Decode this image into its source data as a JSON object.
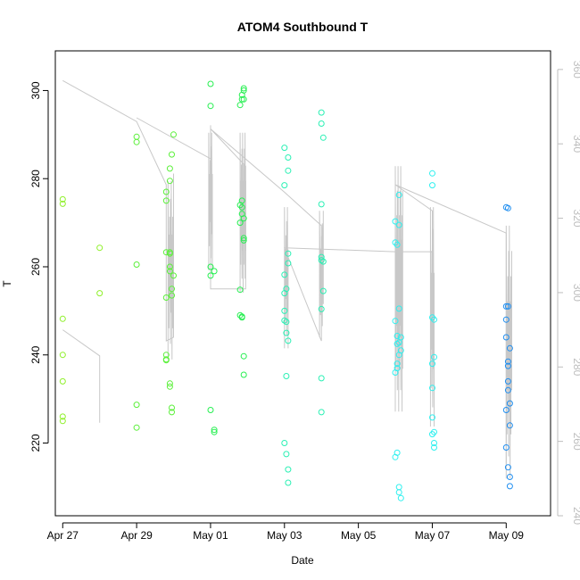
{
  "chart_data": {
    "type": "scatter",
    "title": "ATOM4 Southbound T",
    "xlabel": "Date",
    "ylabel": "T",
    "xlim": [
      -0.2,
      13.2
    ],
    "ylim": [
      203.5,
      309.0
    ],
    "y2lim": [
      240.0,
      365.0
    ],
    "x_ticks": [
      {
        "pos": 0,
        "label": "Apr 27"
      },
      {
        "pos": 2,
        "label": "Apr 29"
      },
      {
        "pos": 4,
        "label": "May 01"
      },
      {
        "pos": 6,
        "label": "May 03"
      },
      {
        "pos": 8,
        "label": "May 05"
      },
      {
        "pos": 10,
        "label": "May 07"
      },
      {
        "pos": 12,
        "label": "May 09"
      }
    ],
    "y_ticks": [
      220,
      240,
      260,
      280,
      300
    ],
    "y2_ticks": [
      240,
      260,
      280,
      300,
      320,
      340,
      360
    ],
    "colors": {
      "line": "#c8c8c8",
      "axis": "#000000",
      "right_axis": "#bdbdbd",
      "point_palette": [
        "#8ff02a",
        "#5bf03a",
        "#25ef50",
        "#2af0b4",
        "#2ef0ef",
        "#1f8ef0"
      ]
    },
    "points": [
      [
        0.0,
        275.3,
        0
      ],
      [
        0.0,
        274.3,
        0
      ],
      [
        0.0,
        248.2,
        0
      ],
      [
        0.0,
        240.0,
        0
      ],
      [
        0.0,
        234.0,
        0
      ],
      [
        0.0,
        226.0,
        0
      ],
      [
        0.0,
        225.0,
        0
      ],
      [
        1.0,
        264.3,
        0
      ],
      [
        1.0,
        254.0,
        0
      ],
      [
        2.0,
        289.5,
        1
      ],
      [
        2.0,
        288.3,
        1
      ],
      [
        2.0,
        260.5,
        1
      ],
      [
        2.0,
        228.7,
        1
      ],
      [
        2.0,
        223.5,
        1
      ],
      [
        2.8,
        277.0,
        1
      ],
      [
        2.8,
        275.0,
        1
      ],
      [
        2.8,
        263.3,
        1
      ],
      [
        2.8,
        253.0,
        1
      ],
      [
        2.8,
        240.0,
        1
      ],
      [
        2.8,
        239.0,
        1
      ],
      [
        2.8,
        238.8,
        1
      ],
      [
        2.9,
        282.3,
        1
      ],
      [
        2.9,
        279.5,
        1
      ],
      [
        2.9,
        263.3,
        1
      ],
      [
        2.9,
        263.0,
        1
      ],
      [
        2.9,
        260.0,
        1
      ],
      [
        2.9,
        259.0,
        1
      ],
      [
        2.9,
        233.5,
        1
      ],
      [
        2.9,
        232.8,
        1
      ],
      [
        2.95,
        285.5,
        1
      ],
      [
        2.95,
        255.0,
        1
      ],
      [
        2.95,
        253.5,
        1
      ],
      [
        2.95,
        228.0,
        1
      ],
      [
        2.95,
        227.0,
        1
      ],
      [
        3.0,
        290.0,
        1
      ],
      [
        3.0,
        258.0,
        1
      ],
      [
        4.0,
        301.5,
        2
      ],
      [
        4.0,
        296.5,
        2
      ],
      [
        4.0,
        260.0,
        2
      ],
      [
        4.0,
        258.0,
        2
      ],
      [
        4.0,
        227.5,
        2
      ],
      [
        4.1,
        259.0,
        2
      ],
      [
        4.1,
        223.0,
        2
      ],
      [
        4.1,
        222.5,
        2
      ],
      [
        4.8,
        296.7,
        2
      ],
      [
        4.8,
        274.0,
        2
      ],
      [
        4.8,
        270.0,
        2
      ],
      [
        4.8,
        254.8,
        2
      ],
      [
        4.8,
        249.0,
        2
      ],
      [
        4.85,
        299.0,
        2
      ],
      [
        4.85,
        298.0,
        2
      ],
      [
        4.85,
        275.0,
        2
      ],
      [
        4.85,
        273.5,
        2
      ],
      [
        4.85,
        272.0,
        2
      ],
      [
        4.85,
        248.7,
        2
      ],
      [
        4.85,
        248.5,
        2
      ],
      [
        4.9,
        300.5,
        2
      ],
      [
        4.9,
        300.0,
        2
      ],
      [
        4.9,
        298.0,
        2
      ],
      [
        4.9,
        271.0,
        2
      ],
      [
        4.9,
        266.5,
        2
      ],
      [
        4.9,
        266.0,
        2
      ],
      [
        4.9,
        239.7,
        2
      ],
      [
        4.9,
        235.5,
        2
      ],
      [
        6.0,
        287.0,
        3
      ],
      [
        6.0,
        278.5,
        3
      ],
      [
        6.0,
        258.2,
        3
      ],
      [
        6.0,
        254.0,
        3
      ],
      [
        6.0,
        250.0,
        3
      ],
      [
        6.0,
        247.8,
        3
      ],
      [
        6.0,
        220.0,
        3
      ],
      [
        6.05,
        255.0,
        3
      ],
      [
        6.05,
        247.5,
        3
      ],
      [
        6.05,
        245.0,
        3
      ],
      [
        6.05,
        235.2,
        3
      ],
      [
        6.05,
        217.5,
        3
      ],
      [
        6.1,
        284.8,
        3
      ],
      [
        6.1,
        281.8,
        3
      ],
      [
        6.1,
        263.0,
        3
      ],
      [
        6.1,
        260.8,
        3
      ],
      [
        6.1,
        243.2,
        3
      ],
      [
        6.1,
        214.0,
        3
      ],
      [
        6.1,
        211.0,
        3
      ],
      [
        7.0,
        295.0,
        3
      ],
      [
        7.0,
        292.5,
        3
      ],
      [
        7.0,
        274.2,
        3
      ],
      [
        7.0,
        262.2,
        3
      ],
      [
        7.0,
        261.5,
        3
      ],
      [
        7.0,
        250.4,
        3
      ],
      [
        7.0,
        234.7,
        3
      ],
      [
        7.0,
        227.0,
        3
      ],
      [
        7.05,
        289.3,
        3
      ],
      [
        7.05,
        261.2,
        3
      ],
      [
        7.05,
        254.5,
        3
      ],
      [
        9.0,
        270.3,
        4
      ],
      [
        9.0,
        265.5,
        4
      ],
      [
        9.0,
        247.7,
        4
      ],
      [
        9.0,
        236.0,
        4
      ],
      [
        9.0,
        216.8,
        4
      ],
      [
        9.05,
        265.0,
        4
      ],
      [
        9.05,
        244.3,
        4
      ],
      [
        9.05,
        242.5,
        4
      ],
      [
        9.05,
        238.0,
        4
      ],
      [
        9.05,
        237.0,
        4
      ],
      [
        9.05,
        217.8,
        4
      ],
      [
        9.1,
        276.3,
        4
      ],
      [
        9.1,
        269.5,
        4
      ],
      [
        9.1,
        250.5,
        4
      ],
      [
        9.1,
        242.8,
        4
      ],
      [
        9.1,
        240.0,
        4
      ],
      [
        9.1,
        210.0,
        4
      ],
      [
        9.1,
        208.8,
        4
      ],
      [
        9.15,
        244.0,
        4
      ],
      [
        9.15,
        241.0,
        4
      ],
      [
        9.15,
        207.5,
        4
      ],
      [
        10.0,
        281.2,
        4
      ],
      [
        10.0,
        278.5,
        4
      ],
      [
        10.0,
        248.5,
        4
      ],
      [
        10.0,
        238.0,
        4
      ],
      [
        10.0,
        232.5,
        4
      ],
      [
        10.0,
        225.8,
        4
      ],
      [
        10.0,
        222.0,
        4
      ],
      [
        10.05,
        248.0,
        4
      ],
      [
        10.05,
        239.5,
        4
      ],
      [
        10.05,
        222.5,
        4
      ],
      [
        10.05,
        220.0,
        4
      ],
      [
        10.05,
        219.0,
        4
      ],
      [
        12.0,
        273.5,
        5
      ],
      [
        12.0,
        251.0,
        5
      ],
      [
        12.0,
        248.0,
        5
      ],
      [
        12.0,
        244.0,
        5
      ],
      [
        12.0,
        227.5,
        5
      ],
      [
        12.0,
        219.0,
        5
      ],
      [
        12.05,
        273.3,
        5
      ],
      [
        12.05,
        251.0,
        5
      ],
      [
        12.05,
        238.5,
        5
      ],
      [
        12.05,
        237.5,
        5
      ],
      [
        12.05,
        234.0,
        5
      ],
      [
        12.05,
        232.0,
        5
      ],
      [
        12.05,
        214.5,
        5
      ],
      [
        12.1,
        241.5,
        5
      ],
      [
        12.1,
        229.0,
        5
      ],
      [
        12.1,
        224.0,
        5
      ],
      [
        12.1,
        212.3,
        5
      ],
      [
        12.1,
        210.2,
        5
      ]
    ],
    "line_series": [
      {
        "name": "polyline-1",
        "y_axis": "right",
        "points": [
          [
            0.0,
            357
          ],
          [
            2.0,
            346
          ],
          [
            2.8,
            329
          ],
          [
            2.8,
            287
          ],
          [
            3.0,
            288
          ],
          [
            3.0,
            332
          ]
        ]
      },
      {
        "name": "polyline-2",
        "y_axis": "right",
        "points": [
          [
            0.0,
            290
          ],
          [
            1.0,
            283
          ],
          [
            1.0,
            265
          ]
        ]
      },
      {
        "name": "polyline-3",
        "y_axis": "right",
        "points": [
          [
            2.0,
            347
          ],
          [
            4.0,
            336
          ],
          [
            4.0,
            345
          ],
          [
            4.0,
            301
          ],
          [
            4.95,
            301
          ],
          [
            4.95,
            334
          ],
          [
            4.0,
            344
          ],
          [
            6.0,
            327
          ],
          [
            7.0,
            318
          ],
          [
            7.0,
            287
          ],
          [
            6.0,
            312
          ],
          [
            6.1,
            312
          ],
          [
            9.0,
            311
          ],
          [
            10.0,
            311
          ],
          [
            10.0,
            322
          ],
          [
            9.0,
            329
          ],
          [
            12.0,
            316
          ],
          [
            12.0,
            254
          ]
        ]
      }
    ],
    "dense_segments": [
      {
        "x": 2.85,
        "x2": 3.0,
        "count": 8,
        "low": 282,
        "high": 330,
        "y_axis": "right"
      },
      {
        "x": 3.95,
        "x2": 4.05,
        "count": 6,
        "low": 306,
        "high": 343,
        "y_axis": "right"
      },
      {
        "x": 4.8,
        "x2": 4.95,
        "count": 10,
        "low": 300,
        "high": 343,
        "y_axis": "right"
      },
      {
        "x": 6.0,
        "x2": 6.1,
        "count": 6,
        "low": 285,
        "high": 323,
        "y_axis": "right"
      },
      {
        "x": 6.95,
        "x2": 7.05,
        "count": 5,
        "low": 288,
        "high": 322,
        "y_axis": "right"
      },
      {
        "x": 9.0,
        "x2": 9.2,
        "count": 12,
        "low": 268,
        "high": 334,
        "y_axis": "right"
      },
      {
        "x": 9.95,
        "x2": 10.05,
        "count": 6,
        "low": 264,
        "high": 323,
        "y_axis": "right"
      },
      {
        "x": 12.0,
        "x2": 12.15,
        "count": 8,
        "low": 250,
        "high": 318,
        "y_axis": "right"
      }
    ]
  }
}
